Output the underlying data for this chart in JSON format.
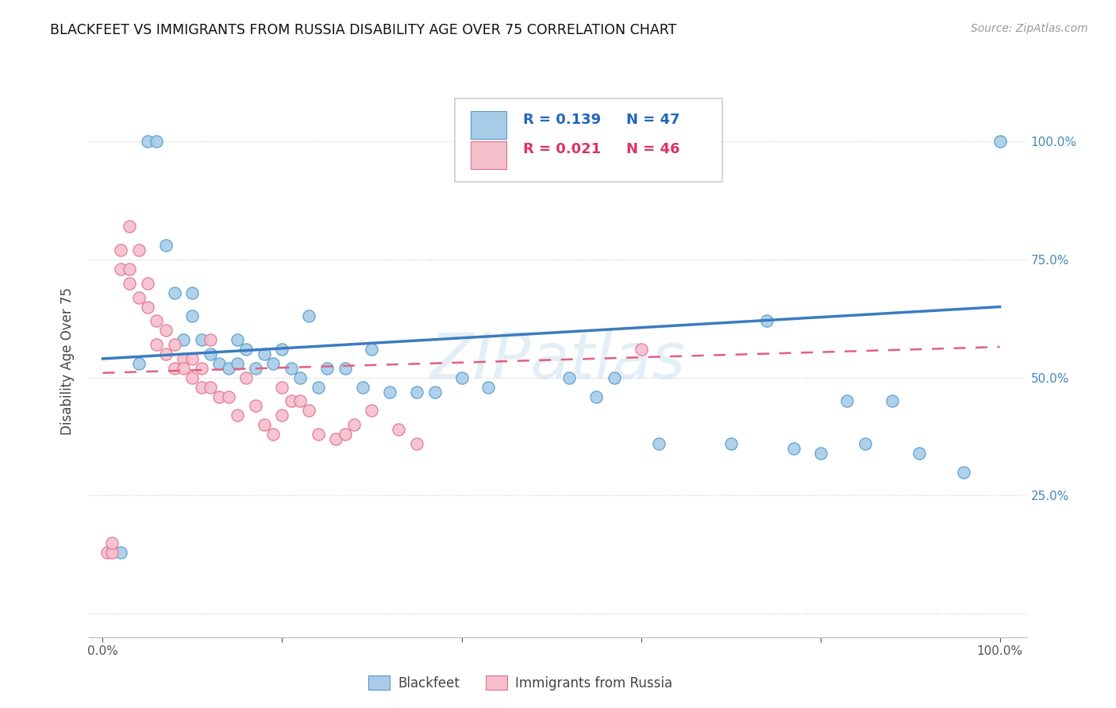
{
  "title": "BLACKFEET VS IMMIGRANTS FROM RUSSIA DISABILITY AGE OVER 75 CORRELATION CHART",
  "source": "Source: ZipAtlas.com",
  "ylabel": "Disability Age Over 75",
  "watermark": "ZIPatlas",
  "legend_label_blue": "Blackfeet",
  "legend_label_pink": "Immigrants from Russia",
  "blue_color": "#a8cce8",
  "blue_edge_color": "#5599cc",
  "pink_color": "#f5bfcc",
  "pink_edge_color": "#e07090",
  "line_blue_color": "#3a7cc0",
  "line_pink_color": "#e06080",
  "r_label_blue": "R = 0.139",
  "n_label_blue": "N = 47",
  "r_label_pink": "R = 0.021",
  "n_label_pink": "N = 46",
  "r_n_blue_color": "#2266bb",
  "r_n_pink_color": "#dd3366",
  "blue_x": [
    0.02,
    0.04,
    0.05,
    0.06,
    0.07,
    0.08,
    0.09,
    0.1,
    0.1,
    0.11,
    0.12,
    0.13,
    0.14,
    0.15,
    0.15,
    0.16,
    0.17,
    0.18,
    0.19,
    0.2,
    0.21,
    0.22,
    0.23,
    0.24,
    0.25,
    0.27,
    0.29,
    0.3,
    0.32,
    0.35,
    0.37,
    0.4,
    0.43,
    0.52,
    0.55,
    0.57,
    0.62,
    0.7,
    0.74,
    0.77,
    0.8,
    0.83,
    0.85,
    0.88,
    0.91,
    0.96,
    1.0
  ],
  "blue_y": [
    0.13,
    0.53,
    1.0,
    1.0,
    0.78,
    0.68,
    0.58,
    0.68,
    0.63,
    0.58,
    0.55,
    0.53,
    0.52,
    0.58,
    0.53,
    0.56,
    0.52,
    0.55,
    0.53,
    0.56,
    0.52,
    0.5,
    0.63,
    0.48,
    0.52,
    0.52,
    0.48,
    0.56,
    0.47,
    0.47,
    0.47,
    0.5,
    0.48,
    0.5,
    0.46,
    0.5,
    0.36,
    0.36,
    0.62,
    0.35,
    0.34,
    0.45,
    0.36,
    0.45,
    0.34,
    0.3,
    1.0
  ],
  "pink_x": [
    0.005,
    0.01,
    0.01,
    0.02,
    0.02,
    0.03,
    0.03,
    0.03,
    0.04,
    0.04,
    0.05,
    0.05,
    0.06,
    0.06,
    0.07,
    0.07,
    0.08,
    0.08,
    0.09,
    0.09,
    0.1,
    0.1,
    0.11,
    0.11,
    0.12,
    0.12,
    0.13,
    0.14,
    0.15,
    0.16,
    0.17,
    0.18,
    0.19,
    0.2,
    0.2,
    0.21,
    0.22,
    0.23,
    0.24,
    0.26,
    0.27,
    0.28,
    0.3,
    0.33,
    0.35,
    0.6
  ],
  "pink_y": [
    0.13,
    0.13,
    0.15,
    0.77,
    0.73,
    0.73,
    0.7,
    0.82,
    0.67,
    0.77,
    0.65,
    0.7,
    0.62,
    0.57,
    0.6,
    0.55,
    0.52,
    0.57,
    0.54,
    0.52,
    0.54,
    0.5,
    0.48,
    0.52,
    0.48,
    0.58,
    0.46,
    0.46,
    0.42,
    0.5,
    0.44,
    0.4,
    0.38,
    0.42,
    0.48,
    0.45,
    0.45,
    0.43,
    0.38,
    0.37,
    0.38,
    0.4,
    0.43,
    0.39,
    0.36,
    0.56
  ]
}
